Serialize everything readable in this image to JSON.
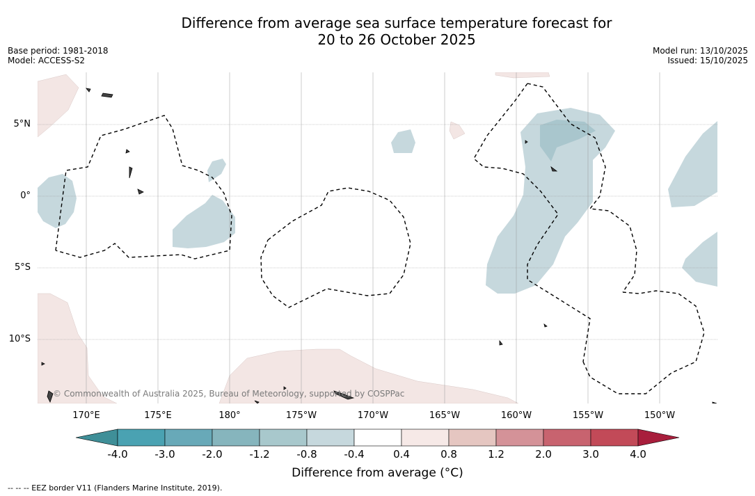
{
  "title": {
    "line1": "Difference from average sea surface temperature forecast for",
    "line2": "20 to 26 October 2025"
  },
  "meta_left": {
    "base_period": "Base period: 1981-2018",
    "model": "Model: ACCESS-S2"
  },
  "meta_right": {
    "model_run": "Model run: 13/10/2025",
    "issued": "Issued: 15/10/2025"
  },
  "map": {
    "lat_labels": [
      "5°N",
      "0°",
      "5°S",
      "10°S"
    ],
    "lon_labels": [
      "170°E",
      "175°E",
      "180°",
      "175°W",
      "170°W",
      "165°W",
      "160°W",
      "155°W",
      "150°W"
    ],
    "copyright": "© Commonwealth of Australia 2025, Bureau of Meteorology, supported by COSPPac",
    "colors": {
      "cool_anomaly": "#c6d8dd",
      "cool_strong": "#a9c6cd",
      "warm_anomaly": "#f3e6e4",
      "eez_line": "#000000",
      "grid": "#999999"
    }
  },
  "colorbar": {
    "tick_labels": [
      "-4.0",
      "-3.0",
      "-2.0",
      "-1.2",
      "-0.8",
      "-0.4",
      "0.4",
      "0.8",
      "1.2",
      "2.0",
      "3.0",
      "4.0"
    ],
    "colors": [
      "#3f8f98",
      "#4aa2b2",
      "#68a9b8",
      "#86b5bd",
      "#a8c8cc",
      "#c6d8dd",
      "#ffffff",
      "#f6e9e7",
      "#e5c6c1",
      "#d49298",
      "#c8636f",
      "#c24a58",
      "#a81e3c"
    ],
    "label": "Difference from average (°C)"
  },
  "footnote": "-- -- -- EEZ border V11 (Flanders Marine Institute, 2019)."
}
